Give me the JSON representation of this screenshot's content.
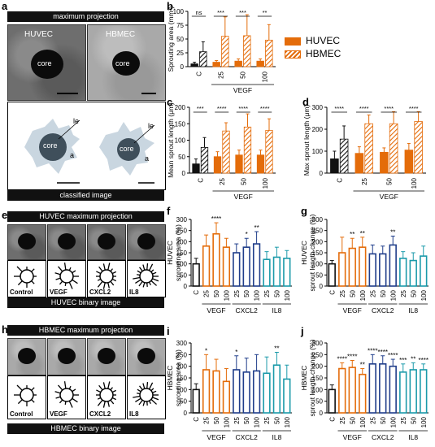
{
  "colors": {
    "huvec": "#e46c0a",
    "ctrl": "#111111",
    "cxcl2": "#1f3d8a",
    "il8": "#1b9aaa"
  },
  "panel_a": {
    "letter": "a",
    "header": "maximum projection",
    "footer": "classified image",
    "cell1": "HUVEC",
    "cell2": "HBMEC",
    "core": "core",
    "le": "le",
    "a": "a"
  },
  "legend": {
    "huvec": "HUVEC",
    "hbmec": "HBMEC"
  },
  "panel_e": {
    "letter": "e",
    "header": "HUVEC maximum projection",
    "footer": "HUVEC binary image",
    "labels": [
      "Control",
      "VEGF",
      "CXCL2",
      "IL8"
    ]
  },
  "panel_h": {
    "letter": "h",
    "header": "HBMEC maximum projection",
    "footer": "HBMEC binary image",
    "labels": [
      "Control",
      "VEGF",
      "CXCL2",
      "IL8"
    ]
  },
  "chart_data": [
    {
      "id": "b",
      "type": "bar",
      "letter": "b",
      "ylabel": "Sprouting area (mm²)",
      "ylim": [
        0,
        100
      ],
      "yticks": [
        0,
        25,
        50,
        75,
        100
      ],
      "categories": [
        "C",
        "25",
        "50",
        "100"
      ],
      "xgroup": "VEGF",
      "series": [
        {
          "name": "HUVEC",
          "values": [
            5,
            8,
            10,
            10
          ],
          "errors": [
            3,
            3,
            4,
            4
          ]
        },
        {
          "name": "HBMEC",
          "values": [
            27,
            55,
            56,
            48
          ],
          "errors": [
            18,
            35,
            38,
            28
          ]
        }
      ],
      "significance": [
        "ns",
        "***",
        "***",
        "**"
      ]
    },
    {
      "id": "c",
      "type": "bar",
      "letter": "c",
      "ylabel": "Mean sprout length (μm)",
      "ylim": [
        0,
        200
      ],
      "yticks": [
        0,
        50,
        100,
        150,
        200
      ],
      "categories": [
        "C",
        "25",
        "50",
        "100"
      ],
      "xgroup": "VEGF",
      "series": [
        {
          "name": "HUVEC",
          "values": [
            28,
            50,
            55,
            55
          ],
          "errors": [
            15,
            15,
            15,
            15
          ]
        },
        {
          "name": "HBMEC",
          "values": [
            78,
            128,
            140,
            130
          ],
          "errors": [
            30,
            25,
            40,
            35
          ]
        }
      ],
      "significance": [
        "***",
        "****",
        "****",
        "****"
      ]
    },
    {
      "id": "d",
      "type": "bar",
      "letter": "d",
      "ylabel": "Max sprout length (μm)",
      "ylim": [
        0,
        300
      ],
      "yticks": [
        0,
        100,
        200,
        300
      ],
      "categories": [
        "C",
        "25",
        "50",
        "100"
      ],
      "xgroup": "VEGF",
      "series": [
        {
          "name": "HUVEC",
          "values": [
            65,
            90,
            95,
            105
          ],
          "errors": [
            35,
            30,
            20,
            30
          ]
        },
        {
          "name": "HBMEC",
          "values": [
            155,
            225,
            225,
            235
          ],
          "errors": [
            60,
            40,
            55,
            45
          ]
        }
      ],
      "significance": [
        "****",
        "****",
        "****",
        "****"
      ]
    },
    {
      "id": "f",
      "type": "bar",
      "letter": "f",
      "ylabel": "HUVEC\nsprouting area (%)",
      "ylim": [
        0,
        300
      ],
      "yticks": [
        0,
        50,
        100,
        150,
        200,
        250,
        300
      ],
      "categories": [
        "C",
        "25",
        "50",
        "100",
        "25",
        "50",
        "100",
        "25",
        "50",
        "100"
      ],
      "groups": [
        {
          "label": "VEGF",
          "from": 1,
          "to": 3
        },
        {
          "label": "CXCL2",
          "from": 4,
          "to": 6
        },
        {
          "label": "IL8",
          "from": 7,
          "to": 9
        }
      ],
      "values": [
        100,
        180,
        235,
        175,
        150,
        175,
        190,
        120,
        130,
        125
      ],
      "errors": [
        25,
        50,
        50,
        40,
        40,
        40,
        55,
        35,
        45,
        35
      ],
      "significance": [
        "",
        "",
        "****",
        "",
        "",
        "*",
        "**",
        "",
        "",
        ""
      ]
    },
    {
      "id": "g",
      "type": "bar",
      "letter": "g",
      "ylabel": "HUVEC\nsprout length change (%)",
      "ylim": [
        0,
        300
      ],
      "yticks": [
        0,
        50,
        100,
        150,
        200,
        250,
        300
      ],
      "categories": [
        "C",
        "25",
        "50",
        "100",
        "25",
        "50",
        "100",
        "25",
        "50",
        "100"
      ],
      "groups": [
        {
          "label": "VEGF",
          "from": 1,
          "to": 3
        },
        {
          "label": "CXCL2",
          "from": 4,
          "to": 6
        },
        {
          "label": "IL8",
          "from": 7,
          "to": 9
        }
      ],
      "values": [
        100,
        150,
        170,
        175,
        145,
        145,
        185,
        125,
        115,
        135
      ],
      "errors": [
        15,
        70,
        45,
        45,
        40,
        35,
        40,
        30,
        35,
        45
      ],
      "significance": [
        "",
        "",
        "**",
        "**",
        "",
        "",
        "**",
        "",
        "",
        ""
      ]
    },
    {
      "id": "i",
      "type": "bar",
      "letter": "i",
      "ylabel": "HBMEC\nsprouting area (%)",
      "ylim": [
        0,
        300
      ],
      "yticks": [
        0,
        50,
        100,
        150,
        200,
        250,
        300
      ],
      "categories": [
        "C",
        "25",
        "50",
        "100",
        "25",
        "50",
        "100",
        "25",
        "50",
        "100"
      ],
      "groups": [
        {
          "label": "VEGF",
          "from": 1,
          "to": 3
        },
        {
          "label": "CXCL2",
          "from": 4,
          "to": 6
        },
        {
          "label": "IL8",
          "from": 7,
          "to": 9
        }
      ],
      "values": [
        100,
        185,
        180,
        135,
        185,
        175,
        180,
        170,
        205,
        145
      ],
      "errors": [
        25,
        65,
        50,
        55,
        60,
        60,
        70,
        70,
        55,
        60
      ],
      "significance": [
        "",
        "*",
        "",
        "",
        "*",
        "",
        "",
        "",
        "**",
        ""
      ]
    },
    {
      "id": "j",
      "type": "bar",
      "letter": "j",
      "ylabel": "HBMEC\nsprout length change (%)",
      "ylim": [
        0,
        300
      ],
      "yticks": [
        0,
        50,
        100,
        150,
        200,
        250,
        300
      ],
      "categories": [
        "C",
        "25",
        "50",
        "100",
        "25",
        "50",
        "100",
        "25",
        "50",
        "100"
      ],
      "groups": [
        {
          "label": "VEGF",
          "from": 1,
          "to": 3
        },
        {
          "label": "CXCL2",
          "from": 4,
          "to": 6
        },
        {
          "label": "IL8",
          "from": 7,
          "to": 9
        }
      ],
      "values": [
        100,
        190,
        195,
        165,
        210,
        210,
        200,
        175,
        185,
        185
      ],
      "errors": [
        20,
        25,
        30,
        25,
        40,
        35,
        30,
        35,
        30,
        25
      ],
      "significance": [
        "",
        "****",
        "****",
        "**",
        "****",
        "****",
        "****",
        "***",
        "**",
        "****"
      ]
    }
  ]
}
